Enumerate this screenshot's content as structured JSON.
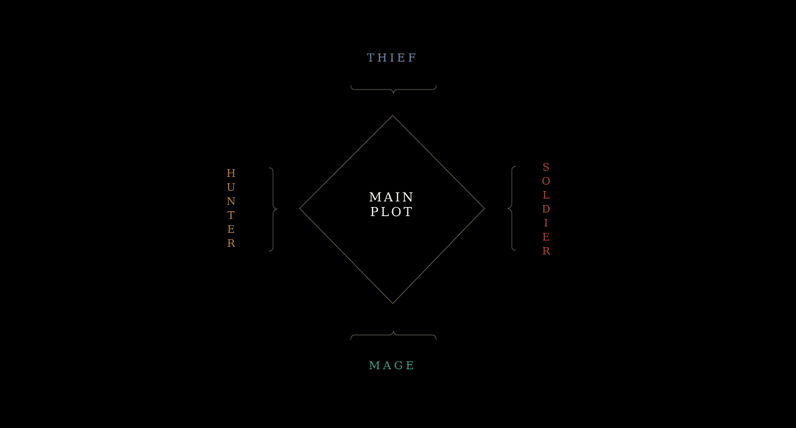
{
  "diagram": {
    "center": {
      "line1": "MAIN",
      "line2": "PLOT"
    },
    "nodes": {
      "top": {
        "label": "THIEF",
        "color": "#6f87a8"
      },
      "bottom": {
        "label": "MAGE",
        "color": "#3f9a86"
      },
      "left": {
        "label": "HUNTER",
        "color": "#b5803f"
      },
      "right": {
        "label": "SOLDIER",
        "color": "#b0443a"
      }
    },
    "diamond_color": "#5a5246",
    "brace_color": "#4a4540"
  }
}
